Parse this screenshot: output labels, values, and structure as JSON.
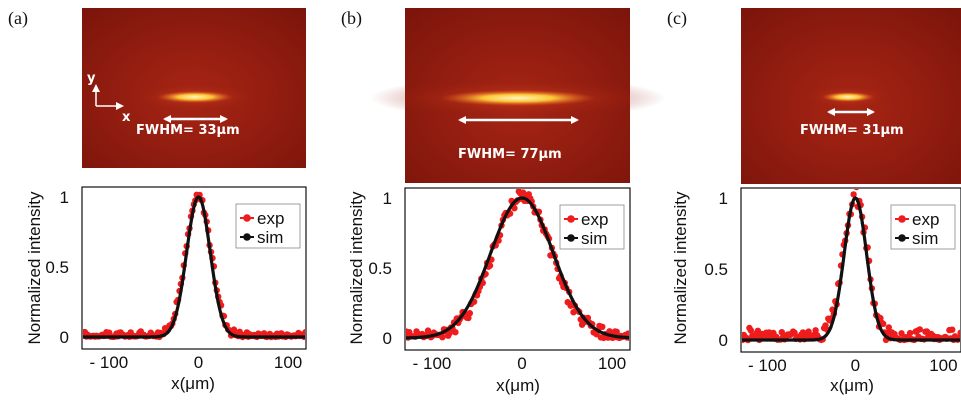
{
  "figure": {
    "beam_colors": {
      "background": "#8b1a10",
      "glow": "#e8561b",
      "core": "#fff7c2"
    },
    "exp_color": "#ee1c1c",
    "sim_color": "#111111",
    "axes_axis_label_x": "x(μm)",
    "axes_axis_label_y": "Normalized intensity",
    "coord_labels": {
      "y": "y",
      "x": "x"
    }
  },
  "panels": [
    {
      "label": "(a)",
      "fwhm_text": "FWHM= 33μm",
      "fwhm_um": 33
    },
    {
      "label": "(b)",
      "fwhm_text": "FWHM= 77μm",
      "fwhm_um": 77
    },
    {
      "label": "(c)",
      "fwhm_text": "FWHM= 31μm",
      "fwhm_um": 31
    }
  ],
  "chart_data": [
    {
      "type": "scatter",
      "xlabel": "x(μm)",
      "ylabel": "Normalized intensity",
      "xlim": [
        -130,
        120
      ],
      "ylim": [
        0,
        1
      ],
      "xticks": [
        -100,
        0,
        100
      ],
      "xtick_labels": [
        "- 100",
        "0",
        "100"
      ],
      "yticks": [
        0,
        0.5,
        1
      ],
      "ytick_labels": [
        "0",
        "0.5",
        "1"
      ],
      "legend": {
        "position": "top-right",
        "entries": [
          "exp",
          "sim"
        ]
      },
      "series": [
        {
          "name": "exp",
          "style": "markers",
          "profile": "gaussian",
          "center": 0,
          "fwhm": 33,
          "peak": 1,
          "noise": 0.03
        },
        {
          "name": "sim",
          "style": "line-markers",
          "profile": "gaussian",
          "center": 0,
          "fwhm": 31,
          "peak": 1
        }
      ]
    },
    {
      "type": "scatter",
      "xlabel": "x(μm)",
      "ylabel": "Normalized intensity",
      "xlim": [
        -130,
        120
      ],
      "ylim": [
        0,
        1
      ],
      "xticks": [
        -100,
        0,
        100
      ],
      "xtick_labels": [
        "- 100",
        "0",
        "100"
      ],
      "yticks": [
        0,
        0.5,
        1
      ],
      "ytick_labels": [
        "0",
        "0.5",
        "1"
      ],
      "legend": {
        "position": "top-right",
        "entries": [
          "exp",
          "sim"
        ]
      },
      "series": [
        {
          "name": "exp",
          "style": "markers",
          "profile": "gaussian",
          "center": 0,
          "fwhm": 77,
          "peak": 1,
          "noise": 0.05
        },
        {
          "name": "sim",
          "style": "line-markers",
          "profile": "gaussian",
          "center": 0,
          "fwhm": 82,
          "peak": 1
        }
      ]
    },
    {
      "type": "scatter",
      "xlabel": "x(μm)",
      "ylabel": "Normalized intensity",
      "xlim": [
        -130,
        120
      ],
      "ylim": [
        0,
        1
      ],
      "xticks": [
        -100,
        0,
        100
      ],
      "xtick_labels": [
        "- 100",
        "0",
        "100"
      ],
      "yticks": [
        0,
        0.5,
        1
      ],
      "ytick_labels": [
        "0",
        "0.5",
        "1"
      ],
      "legend": {
        "position": "top-right",
        "entries": [
          "exp",
          "sim"
        ]
      },
      "series": [
        {
          "name": "exp",
          "style": "markers",
          "profile": "gaussian",
          "center": 0,
          "fwhm": 31,
          "peak": 1,
          "noise": 0.06
        },
        {
          "name": "sim",
          "style": "line-markers",
          "profile": "gaussian",
          "center": 0,
          "fwhm": 30,
          "peak": 1
        }
      ]
    }
  ]
}
